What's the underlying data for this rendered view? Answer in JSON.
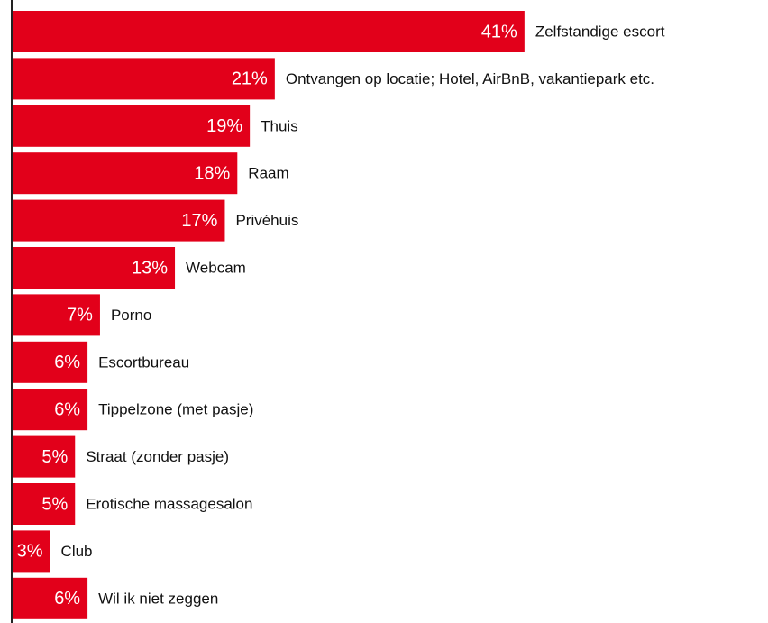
{
  "chart_data": {
    "type": "bar",
    "orientation": "horizontal",
    "categories": [
      "Zelfstandige escort",
      "Ontvangen op locatie; Hotel, AirBnB, vakantiepark etc.",
      "Thuis",
      "Raam",
      "Privéhuis",
      "Webcam",
      "Porno",
      "Escortbureau",
      "Tippelzone (met pasje)",
      "Straat (zonder pasje)",
      "Erotische massagesalon",
      "Club",
      "Wil ik niet zeggen"
    ],
    "values": [
      41,
      21,
      19,
      18,
      17,
      13,
      7,
      6,
      6,
      5,
      5,
      3,
      6
    ],
    "value_labels": [
      "41%",
      "21%",
      "19%",
      "18%",
      "17%",
      "13%",
      "7%",
      "6%",
      "6%",
      "5%",
      "5%",
      "3%",
      "6%"
    ],
    "color": "#e2001a"
  }
}
